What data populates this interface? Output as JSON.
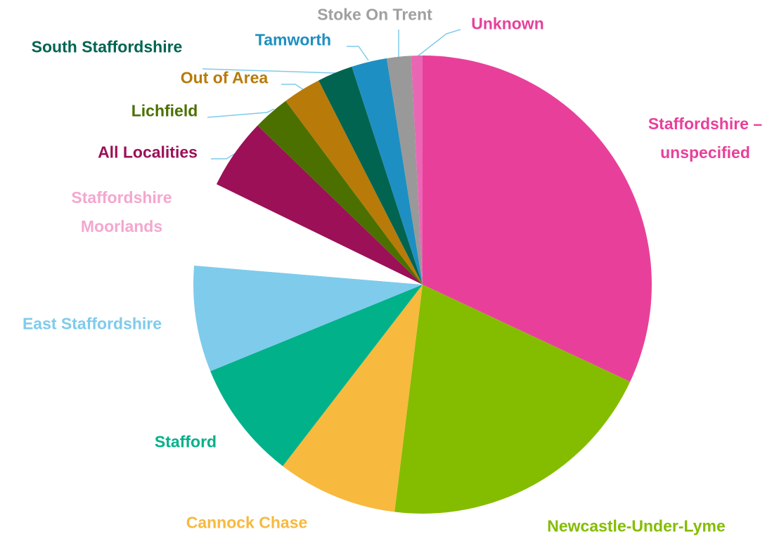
{
  "chart_data": {
    "type": "pie",
    "categories": [
      "Staffordshire – unspecified",
      "Newcastle-Under-Lyme",
      "Cannock Chase",
      "Stafford",
      "East Staffordshire",
      "Staffordshire Moorlands",
      "All Localities",
      "Lichfield",
      "Out of Area",
      "South Staffordshire",
      "Tamworth",
      "Stoke On Trent",
      "Unknown"
    ],
    "values": [
      32,
      20,
      8.5,
      8.4,
      7.5,
      5.9,
      5,
      2.6,
      2.7,
      2.5,
      2.5,
      1.7,
      0.8
    ],
    "colors": [
      "#e8409a",
      "#84bd00",
      "#f7b93e",
      "#00b18a",
      "#7fcbec",
      "#ffffff",
      "#9b1056",
      "#4b7000",
      "#b87a09",
      "#006450",
      "#1e8fc2",
      "#999999",
      "#ea66b4"
    ],
    "label_colors": [
      "#e8409a",
      "#84bd00",
      "#f7b93e",
      "#00b18a",
      "#7fcbec",
      "#f4a7cf",
      "#9b1056",
      "#4b7000",
      "#b87a09",
      "#006450",
      "#1e8fc2",
      "#a0a0a0",
      "#e8409a"
    ]
  }
}
